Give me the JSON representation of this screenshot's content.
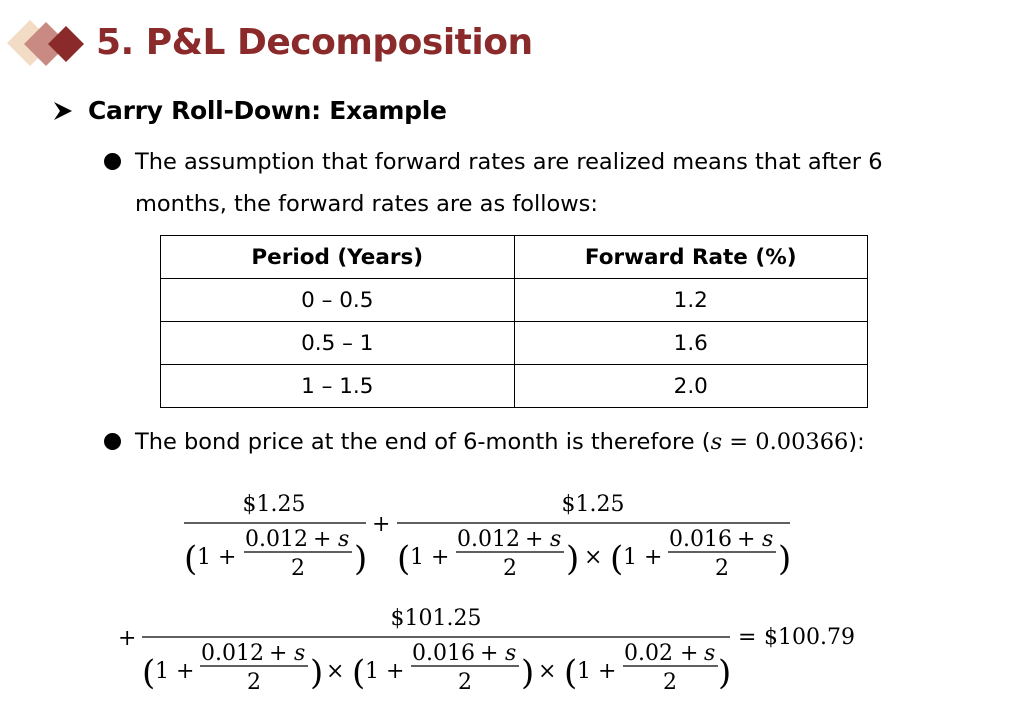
{
  "header": {
    "title": "5. P&L Decomposition",
    "accent_colors": [
      "#8a2a2a",
      "#c98a84",
      "#f3dcc6"
    ]
  },
  "section": {
    "bullet_icon": "arrow-bullet-icon",
    "heading": "Carry Roll-Down: Example"
  },
  "bullets": [
    {
      "text": "The assumption that forward rates are realized means that after 6 months, the forward rates are as follows:"
    },
    {
      "text_before": "The bond price at the end of 6-month is therefore (",
      "math_var": "s",
      "math_eq": " = 0.00366",
      "text_after": "):"
    }
  ],
  "forward_table": {
    "headers": [
      "Period (Years)",
      "Forward Rate (%)"
    ],
    "rows": [
      [
        "0 – 0.5",
        "1.2"
      ],
      [
        "0.5 – 1",
        "1.6"
      ],
      [
        "1 – 1.5",
        "2.0"
      ]
    ]
  },
  "formula": {
    "coupon": "$1.25",
    "final_payment": "$101.25",
    "rate1": "0.012",
    "rate2": "0.016",
    "rate3": "0.02",
    "var": "s",
    "denominator": "2",
    "one": "1",
    "plus": "+",
    "times": "×",
    "lparen": "(",
    "rparen": ")",
    "equals": "=",
    "result": "$100.79"
  }
}
